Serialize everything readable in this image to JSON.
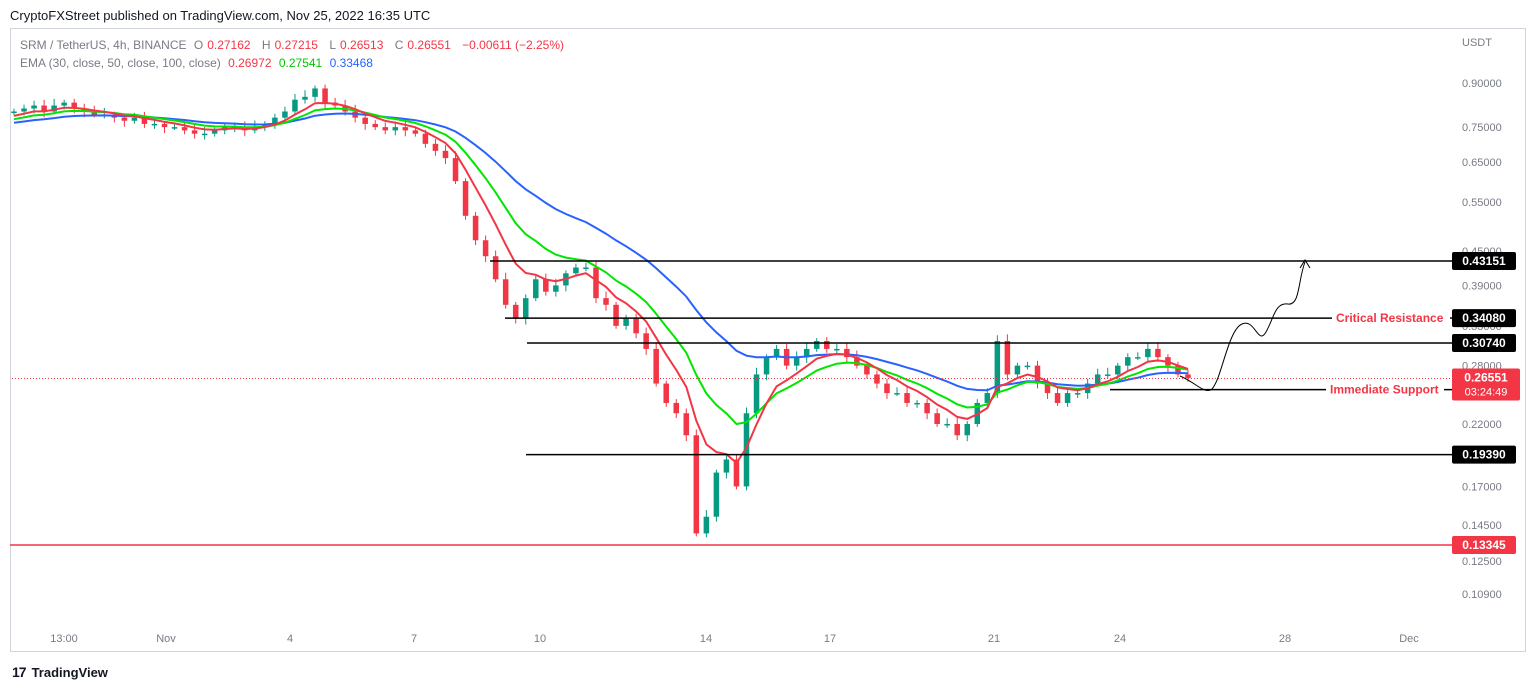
{
  "header": {
    "publisher_line": "CryptoFXStreet published on TradingView.com, Nov 25, 2022 16:35 UTC"
  },
  "legend": {
    "symbol": "SRM / TetherUS, 4h, BINANCE",
    "o_label": "O",
    "o_value": "0.27162",
    "h_label": "H",
    "h_value": "0.27215",
    "l_label": "L",
    "l_value": "0.26513",
    "c_label": "C",
    "c_value": "0.26551",
    "change": "−0.00611 (−2.25%)",
    "ema_label": "EMA (30, close, 50, close, 100, close)",
    "ema30": "0.26972",
    "ema50": "0.27541",
    "ema100": "0.33468"
  },
  "footer": {
    "logo_text": "TradingView"
  },
  "colors": {
    "bull": "#089981",
    "bear": "#f23645",
    "ema30": "#f23645",
    "ema50": "#00e600",
    "ema100": "#2962ff",
    "grid_text": "#787b86",
    "level_line": "#000000",
    "support_red": "#f23645"
  },
  "chart_data": {
    "type": "candlestick",
    "title": "SRM / TetherUS, 4h, BINANCE",
    "y_unit": "USDT",
    "y_scale": "log",
    "ylim": [
      0.085,
      1.0
    ],
    "y_ticks": [
      "0.90000",
      "0.75000",
      "0.65000",
      "0.55000",
      "0.45000",
      "0.39000",
      "0.33000",
      "0.28000",
      "0.22000",
      "0.17000",
      "0.14500",
      "0.12500",
      "0.10900"
    ],
    "x_ticks": [
      "13:00",
      "Nov",
      "4",
      "7",
      "10",
      "14",
      "17",
      "21",
      "24",
      "28",
      "Dec"
    ],
    "series": [
      {
        "name": "SRM / TetherUS",
        "note": "price path (close values, chronological)",
        "values": [
          0.8,
          0.81,
          0.82,
          0.8,
          0.82,
          0.83,
          0.81,
          0.8,
          0.79,
          0.79,
          0.78,
          0.77,
          0.78,
          0.76,
          0.76,
          0.75,
          0.75,
          0.74,
          0.73,
          0.73,
          0.74,
          0.75,
          0.75,
          0.74,
          0.75,
          0.76,
          0.78,
          0.8,
          0.84,
          0.85,
          0.88,
          0.83,
          0.82,
          0.8,
          0.78,
          0.76,
          0.75,
          0.74,
          0.75,
          0.74,
          0.73,
          0.7,
          0.68,
          0.66,
          0.6,
          0.52,
          0.47,
          0.44,
          0.4,
          0.36,
          0.34,
          0.37,
          0.4,
          0.38,
          0.39,
          0.41,
          0.42,
          0.42,
          0.37,
          0.36,
          0.33,
          0.34,
          0.32,
          0.3,
          0.26,
          0.24,
          0.23,
          0.21,
          0.14,
          0.15,
          0.18,
          0.19,
          0.17,
          0.23,
          0.27,
          0.29,
          0.3,
          0.28,
          0.29,
          0.3,
          0.31,
          0.3,
          0.3,
          0.29,
          0.28,
          0.27,
          0.26,
          0.25,
          0.25,
          0.24,
          0.24,
          0.23,
          0.22,
          0.22,
          0.21,
          0.22,
          0.24,
          0.25,
          0.31,
          0.27,
          0.28,
          0.28,
          0.26,
          0.25,
          0.24,
          0.25,
          0.25,
          0.26,
          0.27,
          0.27,
          0.28,
          0.29,
          0.29,
          0.3,
          0.29,
          0.28,
          0.27,
          0.266
        ]
      },
      {
        "name": "EMA 30",
        "last": 0.26972
      },
      {
        "name": "EMA 50",
        "last": 0.27541
      },
      {
        "name": "EMA 100",
        "last": 0.33468
      }
    ],
    "levels": [
      {
        "value": 0.43151,
        "label": "0.43151"
      },
      {
        "value": 0.3408,
        "label": "0.34080",
        "annotation": "Critical Resistance"
      },
      {
        "value": 0.3074,
        "label": "0.30740"
      },
      {
        "value": 0.25357,
        "label": "0.25357",
        "annotation": "Immediate Support"
      },
      {
        "value": 0.1939,
        "label": "0.19390"
      },
      {
        "value": 0.13345,
        "label": "0.13345"
      }
    ],
    "current_price": {
      "value": "0.26551",
      "countdown": "03:24:49"
    }
  }
}
